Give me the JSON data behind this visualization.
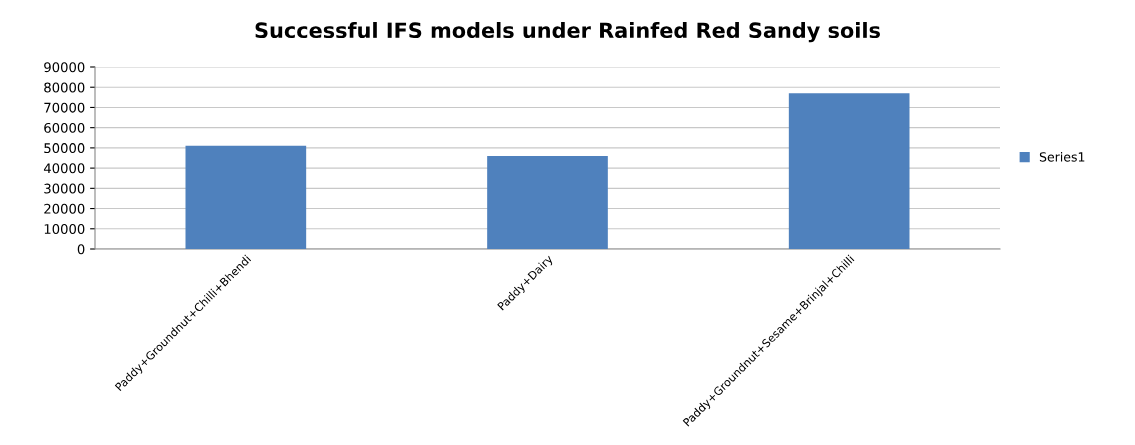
{
  "chart_data": {
    "type": "bar",
    "title": "Successful IFS models under Rainfed Red Sandy soils",
    "categories": [
      "Paddy+Groundnut+Chilli+Bhendi",
      "Paddy+Dairy",
      "Paddy+Groundnut+Sesame+Brinjal+Chilli"
    ],
    "series": [
      {
        "name": "Series1",
        "color": "#4f81bd",
        "values": [
          51000,
          46000,
          77000
        ]
      }
    ],
    "ylim": [
      0,
      90000
    ],
    "yticks": [
      0,
      10000,
      20000,
      30000,
      40000,
      50000,
      60000,
      70000,
      80000,
      90000
    ],
    "grid": "y",
    "legend": "right"
  }
}
